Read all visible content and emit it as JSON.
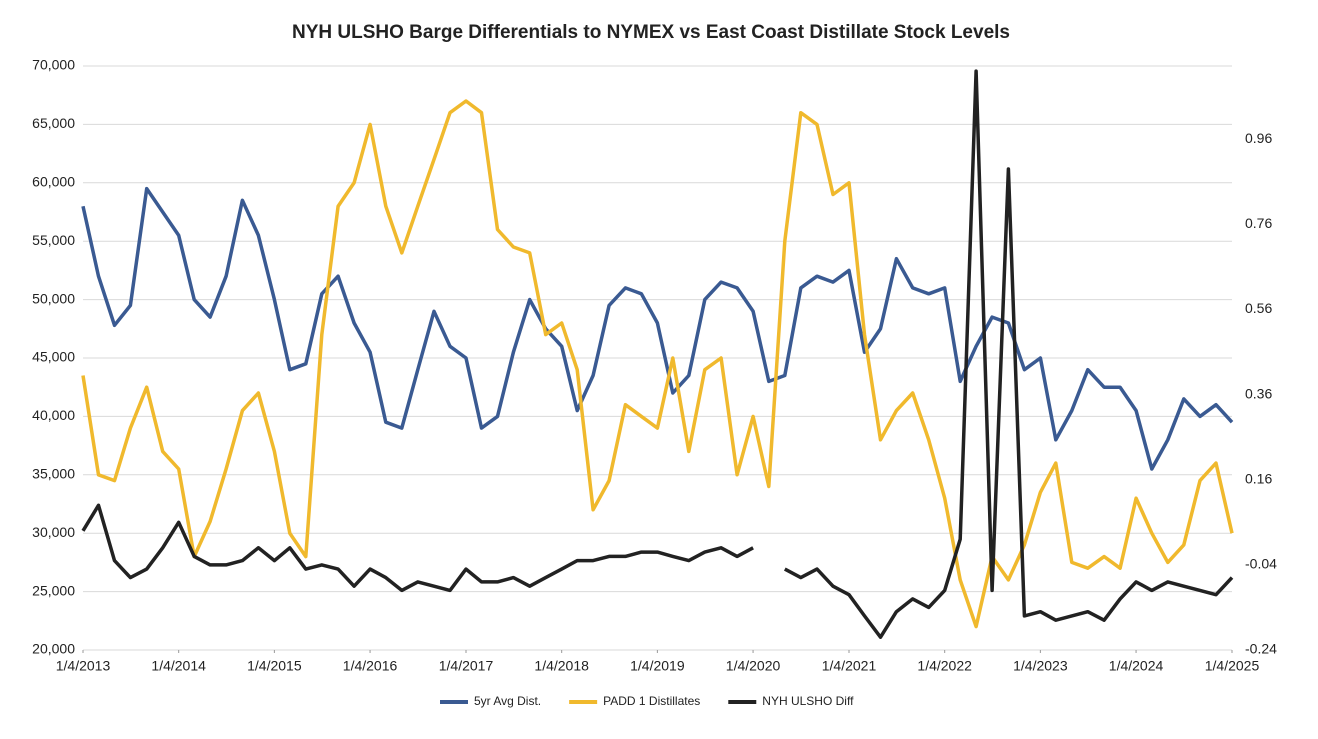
{
  "chart_data": {
    "type": "line",
    "title": "NYH ULSHO Barge Differentials to NYMEX vs East Coast Distillate Stock Levels",
    "x": [
      "2013-01-04",
      "2013-03-04",
      "2013-05-04",
      "2013-07-04",
      "2013-09-04",
      "2013-11-04",
      "2014-01-04",
      "2014-03-04",
      "2014-05-04",
      "2014-07-04",
      "2014-09-04",
      "2014-11-04",
      "2015-01-04",
      "2015-03-04",
      "2015-05-04",
      "2015-07-04",
      "2015-09-04",
      "2015-11-04",
      "2016-01-04",
      "2016-03-04",
      "2016-05-04",
      "2016-07-04",
      "2016-09-04",
      "2016-11-04",
      "2017-01-04",
      "2017-03-04",
      "2017-05-04",
      "2017-07-04",
      "2017-09-04",
      "2017-11-04",
      "2018-01-04",
      "2018-03-04",
      "2018-05-04",
      "2018-07-04",
      "2018-09-04",
      "2018-11-04",
      "2019-01-04",
      "2019-03-04",
      "2019-05-04",
      "2019-07-04",
      "2019-09-04",
      "2019-11-04",
      "2020-01-04",
      "2020-03-04",
      "2020-05-04",
      "2020-07-04",
      "2020-09-04",
      "2020-11-04",
      "2021-01-04",
      "2021-03-04",
      "2021-05-04",
      "2021-07-04",
      "2021-09-04",
      "2021-11-04",
      "2022-01-04",
      "2022-03-04",
      "2022-05-04",
      "2022-07-04",
      "2022-09-04",
      "2022-11-04",
      "2023-01-04",
      "2023-03-04",
      "2023-05-04",
      "2023-07-04",
      "2023-09-04",
      "2023-11-04",
      "2024-01-04",
      "2024-03-04",
      "2024-05-04",
      "2024-07-04",
      "2024-09-04",
      "2024-11-04",
      "2025-01-04"
    ],
    "series": [
      {
        "name": "5yr Avg Dist.",
        "color": "#3a5a92",
        "values": [
          58000,
          52000,
          47800,
          49500,
          59500,
          57500,
          55500,
          50000,
          48500,
          52000,
          58500,
          55500,
          50000,
          44000,
          44500,
          50500,
          52000,
          48000,
          45500,
          39500,
          39000,
          44000,
          49000,
          46000,
          45000,
          39000,
          40000,
          45500,
          50000,
          47500,
          46000,
          40500,
          43500,
          49500,
          51000,
          50500,
          48000,
          42000,
          43500,
          50000,
          51500,
          51000,
          49000,
          43000,
          43500,
          51000,
          52000,
          51500,
          52500,
          45500,
          47500,
          53500,
          51000,
          50500,
          51000,
          43000,
          46000,
          48500,
          48000,
          44000,
          45000,
          38000,
          40500,
          44000,
          42500,
          42500,
          40500,
          35500,
          38000,
          41500,
          40000,
          41000,
          39500
        ]
      },
      {
        "name": "PADD 1 Distillates",
        "color": "#f0b92d",
        "values": [
          43500,
          35000,
          34500,
          39000,
          42500,
          37000,
          35500,
          28000,
          31000,
          35500,
          40500,
          42000,
          37000,
          30000,
          28000,
          47000,
          58000,
          60000,
          65000,
          58000,
          54000,
          58000,
          62000,
          66000,
          67000,
          66000,
          56000,
          54500,
          54000,
          47000,
          48000,
          44000,
          32000,
          34500,
          41000,
          40000,
          39000,
          45000,
          37000,
          44000,
          45000,
          35000,
          40000,
          34000,
          55000,
          66000,
          65000,
          59000,
          60000,
          47000,
          38000,
          40500,
          42000,
          38000,
          33000,
          26000,
          22000,
          28000,
          26000,
          29000,
          33500,
          36000,
          27500,
          27000,
          28000,
          27000,
          33000,
          30000,
          27500,
          29000,
          34500,
          36000,
          30000
        ]
      },
      {
        "name": "NYH ULSHO Diff",
        "color": "#222222",
        "axis": "y2",
        "values": [
          0.04,
          0.1,
          -0.03,
          -0.07,
          -0.05,
          0.0,
          0.06,
          -0.02,
          -0.04,
          -0.04,
          -0.03,
          0.0,
          -0.03,
          0.0,
          -0.05,
          -0.04,
          -0.05,
          -0.09,
          -0.05,
          -0.07,
          -0.1,
          -0.08,
          -0.09,
          -0.1,
          -0.05,
          -0.08,
          -0.08,
          -0.07,
          -0.09,
          -0.07,
          -0.05,
          -0.03,
          -0.03,
          -0.02,
          -0.02,
          -0.01,
          -0.01,
          -0.02,
          -0.03,
          -0.01,
          0.0,
          -0.02,
          0.0,
          null,
          -0.05,
          -0.07,
          -0.05,
          -0.09,
          -0.11,
          -0.16,
          -0.21,
          -0.15,
          -0.12,
          -0.14,
          -0.1,
          0.02,
          1.12,
          -0.1,
          0.89,
          -0.16,
          -0.15,
          -0.17,
          -0.16,
          -0.15,
          -0.17,
          -0.12,
          -0.08,
          -0.1,
          -0.08,
          -0.09,
          -0.1,
          -0.11,
          -0.07
        ]
      }
    ],
    "xlim": [
      "2013-01-04",
      "2025-01-04"
    ],
    "xticks": [
      {
        "value": "2013-01-04",
        "label": "1/4/2013"
      },
      {
        "value": "2014-01-04",
        "label": "1/4/2014"
      },
      {
        "value": "2015-01-04",
        "label": "1/4/2015"
      },
      {
        "value": "2016-01-04",
        "label": "1/4/2016"
      },
      {
        "value": "2017-01-04",
        "label": "1/4/2017"
      },
      {
        "value": "2018-01-04",
        "label": "1/4/2018"
      },
      {
        "value": "2019-01-04",
        "label": "1/4/2019"
      },
      {
        "value": "2020-01-04",
        "label": "1/4/2020"
      },
      {
        "value": "2021-01-04",
        "label": "1/4/2021"
      },
      {
        "value": "2022-01-04",
        "label": "1/4/2022"
      },
      {
        "value": "2023-01-04",
        "label": "1/4/2023"
      },
      {
        "value": "2024-01-04",
        "label": "1/4/2024"
      },
      {
        "value": "2025-01-04",
        "label": "1/4/2025"
      }
    ],
    "ylim": [
      20000,
      70000
    ],
    "yticks": [
      {
        "value": 20000,
        "label": "20,000"
      },
      {
        "value": 25000,
        "label": "25,000"
      },
      {
        "value": 30000,
        "label": "30,000"
      },
      {
        "value": 35000,
        "label": "35,000"
      },
      {
        "value": 40000,
        "label": "40,000"
      },
      {
        "value": 45000,
        "label": "45,000"
      },
      {
        "value": 50000,
        "label": "50,000"
      },
      {
        "value": 55000,
        "label": "55,000"
      },
      {
        "value": 60000,
        "label": "60,000"
      },
      {
        "value": 65000,
        "label": "65,000"
      },
      {
        "value": 70000,
        "label": "70,000"
      }
    ],
    "y2lim": [
      -0.24,
      1.132
    ],
    "y2ticks": [
      -0.24,
      -0.04,
      0.16,
      0.36,
      0.56,
      0.76,
      0.96
    ],
    "grid": true,
    "legend": "bottom"
  }
}
